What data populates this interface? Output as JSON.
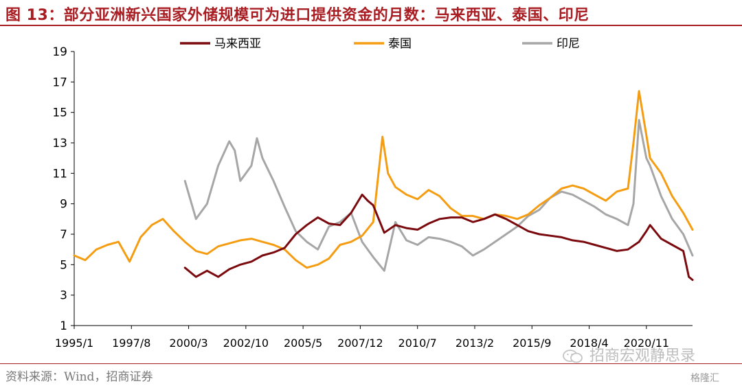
{
  "header": {
    "title": "图 13：部分亚洲新兴国家外储规模可为进口提供资金的月数：马来西亚、泰国、印尼"
  },
  "footer": {
    "source": "资料来源：Wind，招商证券",
    "watermark": "招商宏观静思录",
    "badge": "格隆汇"
  },
  "colors": {
    "accent": "#a81c22",
    "malaysia": "#7b0a0f",
    "thailand": "#f59d12",
    "indonesia": "#a6a6a6"
  },
  "chart_data": {
    "type": "line",
    "x_ticks": [
      "1995/1",
      "1997/8",
      "2000/3",
      "2002/10",
      "2005/5",
      "2007/12",
      "2010/7",
      "2013/2",
      "2015/9",
      "2018/4",
      "2020/11"
    ],
    "y_ticks": [
      1,
      3,
      5,
      7,
      9,
      11,
      13,
      15,
      17,
      19
    ],
    "ylim": [
      1,
      19
    ],
    "xlim": [
      "1995/1",
      "2022/12"
    ],
    "legend_position": "top",
    "grid": false,
    "series": [
      {
        "name": "马来西亚",
        "color": "#7b0a0f",
        "x": [
          "2000/1",
          "2000/7",
          "2001/1",
          "2001/7",
          "2002/1",
          "2002/7",
          "2003/1",
          "2003/7",
          "2004/1",
          "2004/7",
          "2005/1",
          "2005/7",
          "2006/1",
          "2006/7",
          "2007/1",
          "2007/7",
          "2008/1",
          "2008/4",
          "2008/7",
          "2009/1",
          "2009/7",
          "2010/1",
          "2010/7",
          "2011/1",
          "2011/7",
          "2012/1",
          "2012/7",
          "2013/1",
          "2013/7",
          "2014/1",
          "2014/7",
          "2015/1",
          "2015/7",
          "2016/1",
          "2016/7",
          "2017/1",
          "2017/7",
          "2018/1",
          "2018/7",
          "2019/1",
          "2019/7",
          "2020/1",
          "2020/7",
          "2020/11",
          "2021/1",
          "2021/7",
          "2022/1",
          "2022/7",
          "2022/10",
          "2022/12"
        ],
        "y": [
          4.8,
          4.2,
          4.6,
          4.2,
          4.7,
          5.0,
          5.2,
          5.6,
          5.8,
          6.1,
          7.0,
          7.6,
          8.1,
          7.7,
          7.6,
          8.4,
          9.6,
          9.2,
          8.9,
          7.1,
          7.6,
          7.4,
          7.3,
          7.7,
          8.0,
          8.1,
          8.1,
          7.8,
          8.0,
          8.3,
          8.0,
          7.6,
          7.2,
          7.0,
          6.9,
          6.8,
          6.6,
          6.5,
          6.3,
          6.1,
          5.9,
          6.0,
          6.5,
          7.2,
          7.6,
          6.7,
          6.3,
          5.9,
          4.2,
          4.0
        ]
      },
      {
        "name": "泰国",
        "color": "#f59d12",
        "x": [
          "1995/1",
          "1995/7",
          "1996/1",
          "1996/7",
          "1997/1",
          "1997/7",
          "1998/1",
          "1998/7",
          "1999/1",
          "1999/7",
          "2000/1",
          "2000/7",
          "2001/1",
          "2001/7",
          "2002/1",
          "2002/7",
          "2003/1",
          "2003/7",
          "2004/1",
          "2004/7",
          "2005/1",
          "2005/7",
          "2006/1",
          "2006/7",
          "2007/1",
          "2007/7",
          "2008/1",
          "2008/7",
          "2008/12",
          "2009/3",
          "2009/7",
          "2010/1",
          "2010/7",
          "2011/1",
          "2011/7",
          "2012/1",
          "2012/7",
          "2013/1",
          "2013/7",
          "2014/1",
          "2014/7",
          "2015/1",
          "2015/7",
          "2016/1",
          "2016/7",
          "2017/1",
          "2017/7",
          "2018/1",
          "2018/7",
          "2019/1",
          "2019/7",
          "2020/1",
          "2020/4",
          "2020/7",
          "2020/11",
          "2021/1",
          "2021/7",
          "2022/1",
          "2022/7",
          "2022/12"
        ],
        "y": [
          5.6,
          5.3,
          6.0,
          6.3,
          6.5,
          5.2,
          6.8,
          7.6,
          8.0,
          7.2,
          6.5,
          5.9,
          5.7,
          6.2,
          6.4,
          6.6,
          6.7,
          6.5,
          6.3,
          6.0,
          5.3,
          4.8,
          5.0,
          5.4,
          6.3,
          6.5,
          6.9,
          7.8,
          13.4,
          11.0,
          10.1,
          9.6,
          9.3,
          9.9,
          9.5,
          8.7,
          8.2,
          8.2,
          8.0,
          8.3,
          8.2,
          8.0,
          8.3,
          8.9,
          9.4,
          10.0,
          10.2,
          10.0,
          9.6,
          9.2,
          9.8,
          10.0,
          13.0,
          16.4,
          13.5,
          12.0,
          11.0,
          9.5,
          8.4,
          7.3
        ]
      },
      {
        "name": "印尼",
        "color": "#a6a6a6",
        "x": [
          "2000/1",
          "2000/7",
          "2001/1",
          "2001/7",
          "2002/1",
          "2002/4",
          "2002/7",
          "2003/1",
          "2003/4",
          "2003/7",
          "2004/1",
          "2004/7",
          "2005/1",
          "2005/7",
          "2006/1",
          "2006/7",
          "2007/1",
          "2007/7",
          "2008/1",
          "2008/7",
          "2009/1",
          "2009/7",
          "2010/1",
          "2010/7",
          "2011/1",
          "2011/7",
          "2012/1",
          "2012/7",
          "2013/1",
          "2013/7",
          "2014/1",
          "2014/7",
          "2015/1",
          "2015/7",
          "2016/1",
          "2016/7",
          "2017/1",
          "2017/7",
          "2018/1",
          "2018/7",
          "2019/1",
          "2019/7",
          "2020/1",
          "2020/4",
          "2020/7",
          "2020/11",
          "2021/1",
          "2021/7",
          "2022/1",
          "2022/7",
          "2022/12"
        ],
        "y": [
          10.5,
          8.0,
          9.0,
          11.5,
          13.1,
          12.5,
          10.5,
          11.5,
          13.3,
          12.0,
          10.5,
          8.8,
          7.2,
          6.5,
          6.0,
          7.5,
          7.8,
          8.4,
          6.5,
          5.5,
          4.6,
          7.8,
          6.6,
          6.3,
          6.8,
          6.7,
          6.5,
          6.2,
          5.6,
          6.0,
          6.5,
          7.0,
          7.5,
          8.2,
          8.6,
          9.4,
          9.8,
          9.6,
          9.2,
          8.8,
          8.3,
          8.0,
          7.6,
          9.0,
          14.5,
          12.0,
          11.5,
          9.5,
          8.0,
          7.0,
          5.6
        ]
      }
    ]
  }
}
